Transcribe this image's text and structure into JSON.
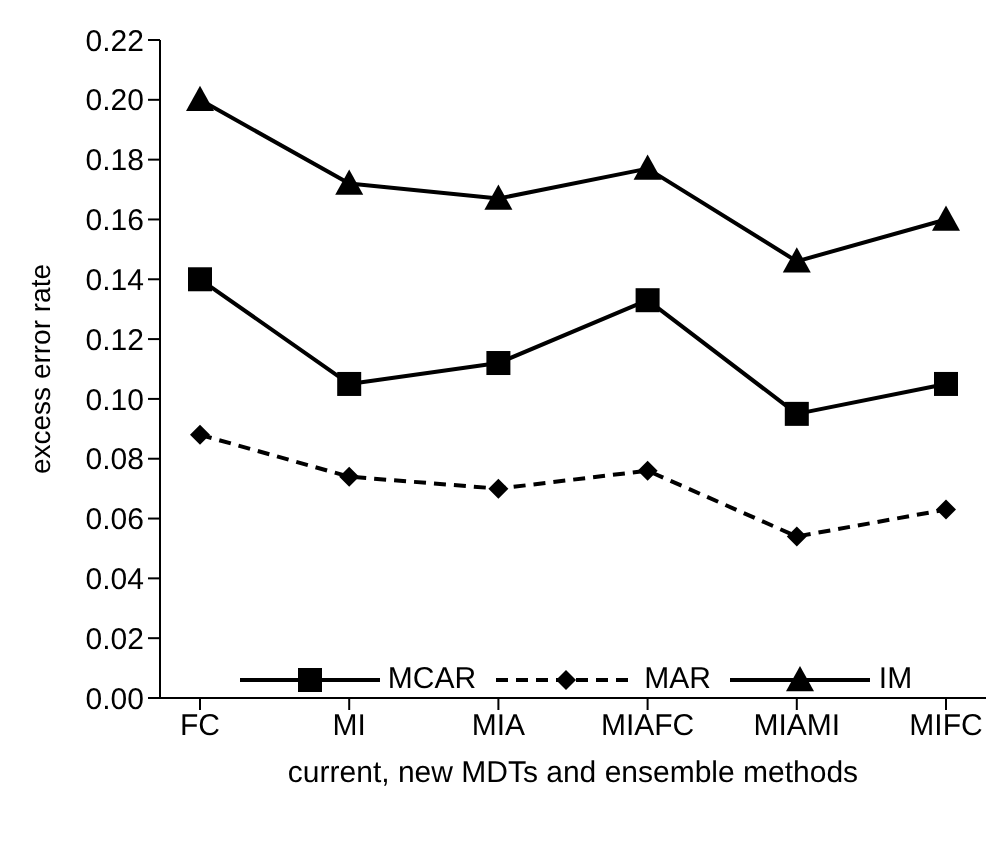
{
  "chart_data": {
    "type": "line",
    "xlabel": "current, new MDTs and ensemble methods",
    "ylabel": "excess error rate",
    "categories": [
      "FC",
      "MI",
      "MIA",
      "MIAFC",
      "MIAMI",
      "MIFC"
    ],
    "series": [
      {
        "name": "MCAR",
        "color": "#000000",
        "marker": "square",
        "line_style": "solid",
        "values": [
          0.14,
          0.105,
          0.112,
          0.133,
          0.095,
          0.105
        ]
      },
      {
        "name": "MAR",
        "color": "#000000",
        "marker": "diamond",
        "line_style": "dashed",
        "values": [
          0.088,
          0.074,
          0.07,
          0.076,
          0.054,
          0.063
        ]
      },
      {
        "name": "IM",
        "color": "#000000",
        "marker": "triangle",
        "line_style": "solid",
        "values": [
          0.2,
          0.172,
          0.167,
          0.177,
          0.146,
          0.16
        ]
      }
    ],
    "ylim": [
      0,
      0.22
    ],
    "yticks": [
      {
        "value": 0,
        "label": "0.00"
      },
      0.02,
      0.04,
      0.06,
      0.08,
      {
        "value": 0.1,
        "label": "0.10"
      },
      0.12,
      0.14,
      0.16,
      0.18,
      {
        "value": 0.2,
        "label": "0.20"
      },
      0.22
    ],
    "grid": false,
    "legend": "bottom"
  }
}
